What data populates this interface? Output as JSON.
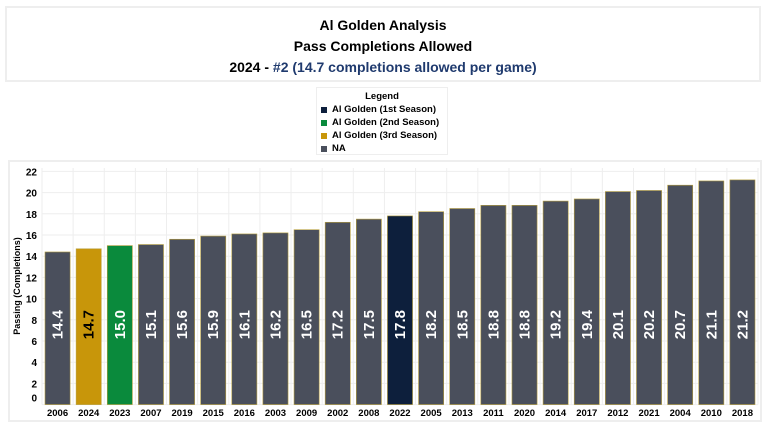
{
  "title": {
    "line1": "Al Golden Analysis",
    "line2": "Pass Completions Allowed",
    "line3_prefix": "2024 - ",
    "line3_highlight": "#2 (14.7 completions allowed per game)",
    "highlight_color": "#1f3a6e"
  },
  "legend": {
    "title": "Legend",
    "items": [
      {
        "label": "Al Golden (1st Season)",
        "color": "#0d1f3c"
      },
      {
        "label": "Al Golden (2nd Season)",
        "color": "#0a8a3c"
      },
      {
        "label": "Al Golden (3rd Season)",
        "color": "#c8960a"
      },
      {
        "label": "NA",
        "color": "#4a4f5c"
      }
    ]
  },
  "chart_data": {
    "type": "bar",
    "ylabel": "Passing (Completions)",
    "ylim": [
      0,
      22
    ],
    "yticks": [
      0,
      2,
      4,
      6,
      8,
      10,
      12,
      14,
      16,
      18,
      20,
      22
    ],
    "grid": true,
    "legend_position": "top-center",
    "categories": [
      "2006",
      "2024",
      "2023",
      "2007",
      "2019",
      "2015",
      "2016",
      "2003",
      "2009",
      "2002",
      "2008",
      "2022",
      "2005",
      "2013",
      "2011",
      "2020",
      "2014",
      "2017",
      "2012",
      "2021",
      "2004",
      "2010",
      "2018"
    ],
    "values": [
      14.4,
      14.7,
      15.0,
      15.1,
      15.6,
      15.9,
      16.1,
      16.2,
      16.5,
      17.2,
      17.5,
      17.8,
      18.2,
      18.5,
      18.8,
      18.8,
      19.2,
      19.4,
      20.1,
      20.2,
      20.7,
      21.1,
      21.2
    ],
    "labels": [
      "14.4",
      "14.7",
      "15.0",
      "15.1",
      "15.6",
      "15.9",
      "16.1",
      "16.2",
      "16.5",
      "17.2",
      "17.5",
      "17.8",
      "18.2",
      "18.5",
      "18.8",
      "18.8",
      "19.2",
      "19.4",
      "20.1",
      "20.2",
      "20.7",
      "21.1",
      "21.2"
    ],
    "series_group": [
      "NA",
      "Al Golden (3rd Season)",
      "Al Golden (2nd Season)",
      "NA",
      "NA",
      "NA",
      "NA",
      "NA",
      "NA",
      "NA",
      "NA",
      "Al Golden (1st Season)",
      "NA",
      "NA",
      "NA",
      "NA",
      "NA",
      "NA",
      "NA",
      "NA",
      "NA",
      "NA",
      "NA"
    ]
  }
}
